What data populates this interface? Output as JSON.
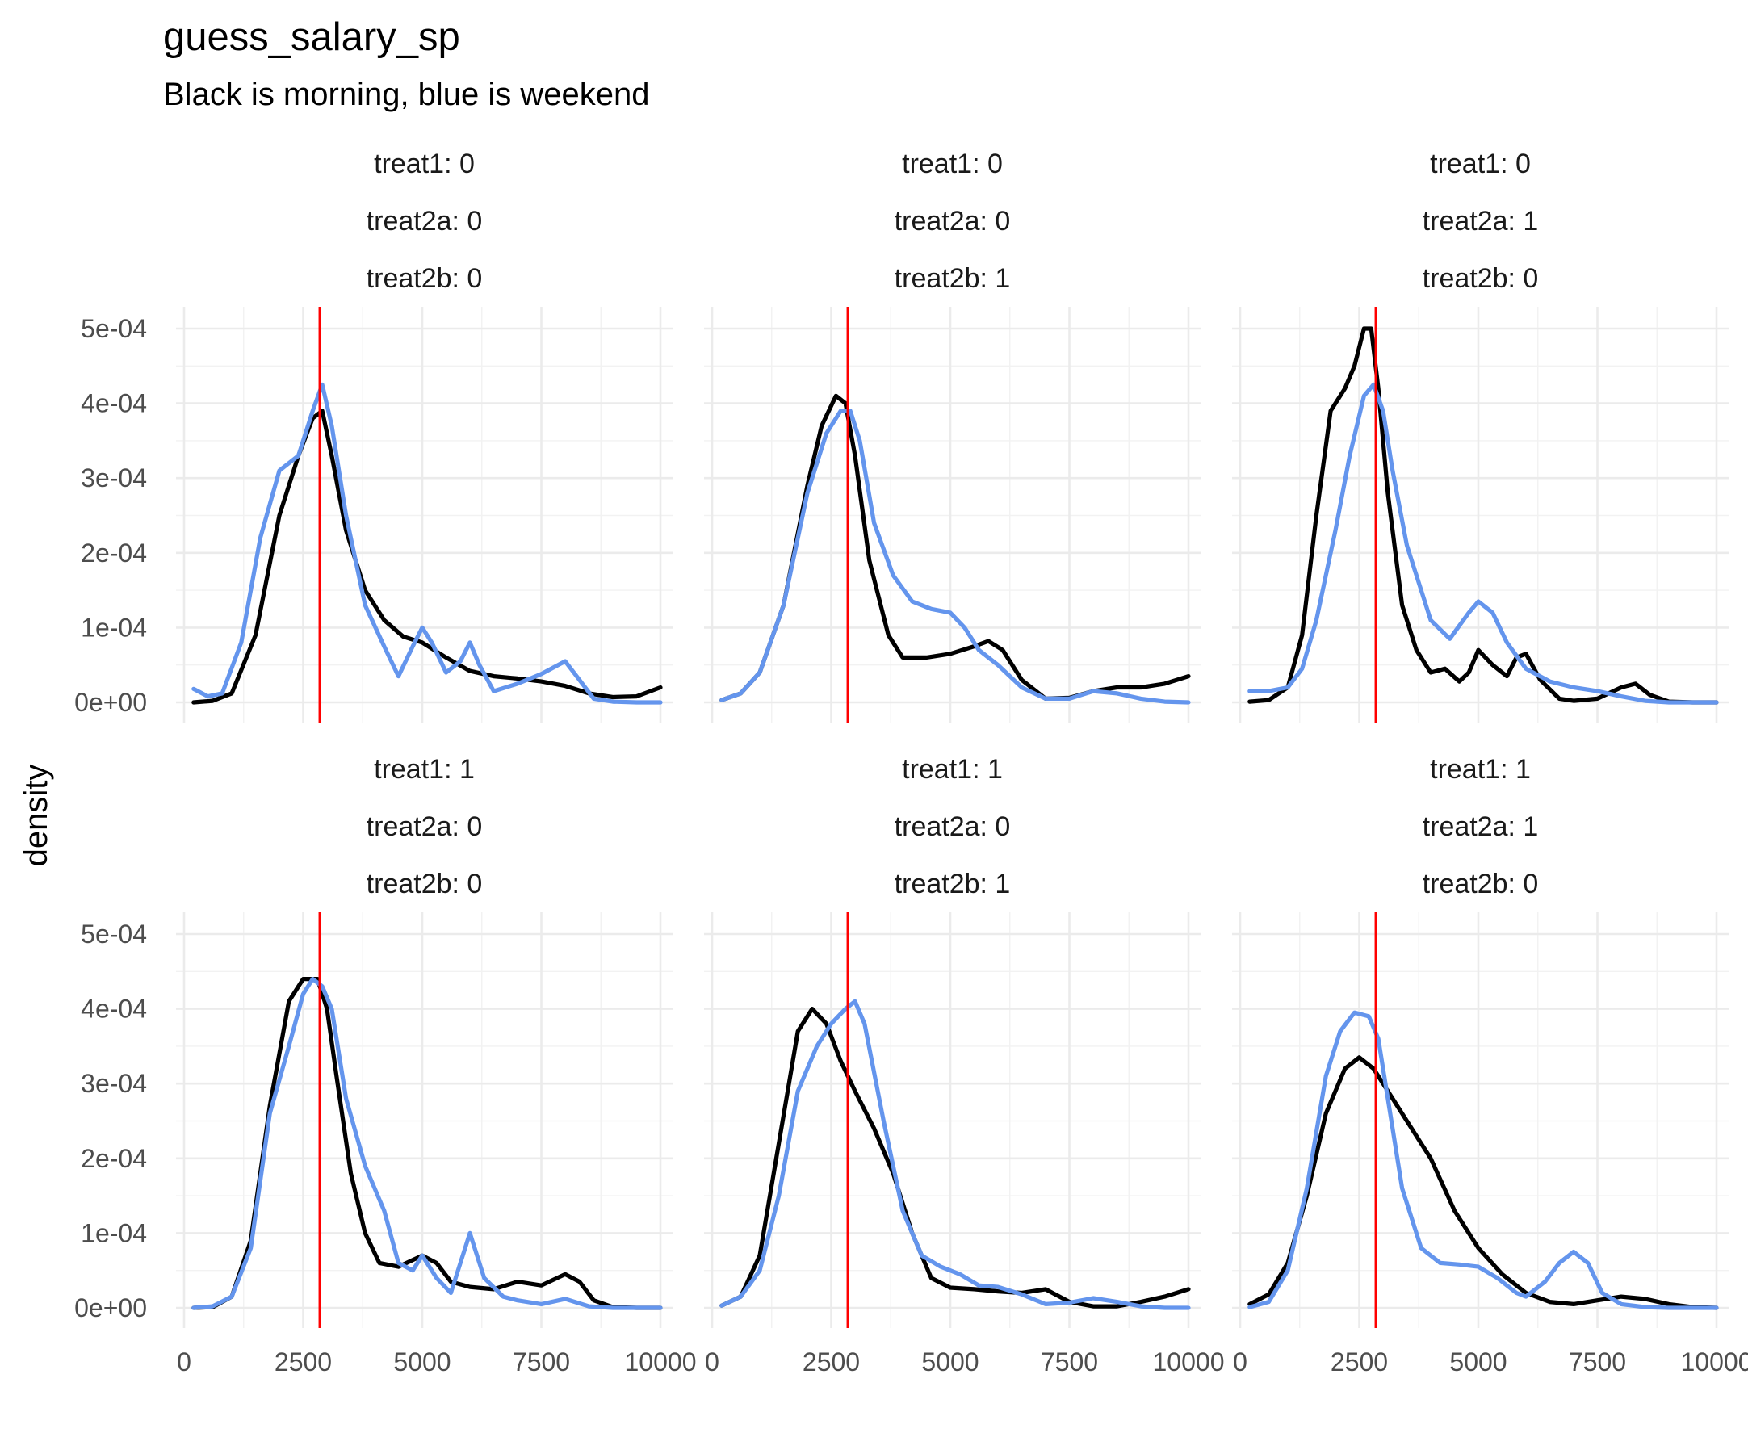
{
  "chart_data": {
    "type": "line",
    "subtype": "faceted density",
    "title": "guess_salary_sp",
    "subtitle": "Black is morning, blue is weekend",
    "xlabel": "",
    "ylabel": "density",
    "xlim": [
      0,
      10000
    ],
    "ylim": [
      0,
      0.0005
    ],
    "x_ticks": [
      0,
      2500,
      5000,
      7500,
      10000
    ],
    "x_tick_labels": [
      "0",
      "2500",
      "5000",
      "7500",
      "10000"
    ],
    "y_ticks": [
      0,
      0.0001,
      0.0002,
      0.0003,
      0.0004,
      0.0005
    ],
    "y_tick_labels": [
      "0e+00",
      "1e-04",
      "2e-04",
      "3e-04",
      "4e-04",
      "5e-04"
    ],
    "grid": true,
    "legend": "none",
    "reference_line_x": 2850,
    "colors": {
      "morning": "#000000",
      "weekend": "#6495ED",
      "reference": "#FF0000"
    },
    "facets": [
      {
        "strip": [
          "treat1: 0",
          "treat2a: 0",
          "treat2b: 0"
        ],
        "series": [
          {
            "color": "#000000",
            "x": [
              200,
              600,
              1000,
              1500,
              2000,
              2400,
              2700,
              2900,
              3100,
              3400,
              3800,
              4200,
              4600,
              5000,
              5500,
              6000,
              6500,
              7000,
              7500,
              8000,
              8500,
              9000,
              9500,
              10000
            ],
            "y": [
              0,
              2e-06,
              1.2e-05,
              9e-05,
              0.00025,
              0.00033,
              0.00038,
              0.00039,
              0.00033,
              0.00023,
              0.00015,
              0.00011,
              8.8e-05,
              8e-05,
              6e-05,
              4.2e-05,
              3.5e-05,
              3.2e-05,
              2.8e-05,
              2.2e-05,
              1.2e-05,
              7e-06,
              8e-06,
              2e-05
            ]
          },
          {
            "color": "#6495ED",
            "x": [
              200,
              500,
              800,
              1200,
              1600,
              2000,
              2400,
              2700,
              2900,
              3100,
              3400,
              3800,
              4200,
              4500,
              4800,
              5000,
              5200,
              5500,
              5800,
              6000,
              6200,
              6500,
              7000,
              7500,
              8000,
              8300,
              8600,
              9000,
              9500,
              10000
            ],
            "y": [
              1.8e-05,
              8e-06,
              1.2e-05,
              8e-05,
              0.00022,
              0.00031,
              0.00033,
              0.00039,
              0.000425,
              0.00037,
              0.00025,
              0.00013,
              7.5e-05,
              3.5e-05,
              7.5e-05,
              0.0001,
              8e-05,
              4e-05,
              5.5e-05,
              8e-05,
              5e-05,
              1.5e-05,
              2.5e-05,
              3.8e-05,
              5.5e-05,
              3e-05,
              5e-06,
              1e-06,
              0,
              0
            ]
          }
        ]
      },
      {
        "strip": [
          "treat1: 0",
          "treat2a: 0",
          "treat2b: 1"
        ],
        "series": [
          {
            "color": "#000000",
            "x": [
              200,
              600,
              1000,
              1500,
              2000,
              2300,
              2600,
              2800,
              3000,
              3300,
              3700,
              4000,
              4500,
              5000,
              5500,
              5800,
              6100,
              6500,
              7000,
              7500,
              8000,
              8500,
              9000,
              9500,
              10000
            ],
            "y": [
              3e-06,
              1.2e-05,
              4e-05,
              0.00013,
              0.00029,
              0.00037,
              0.00041,
              0.0004,
              0.00033,
              0.00019,
              9e-05,
              6e-05,
              6e-05,
              6.5e-05,
              7.5e-05,
              8.2e-05,
              7e-05,
              3e-05,
              5e-06,
              6e-06,
              1.5e-05,
              2e-05,
              2e-05,
              2.5e-05,
              3.5e-05
            ]
          },
          {
            "color": "#6495ED",
            "x": [
              200,
              600,
              1000,
              1500,
              2000,
              2400,
              2700,
              2900,
              3100,
              3400,
              3800,
              4200,
              4600,
              5000,
              5300,
              5600,
              6000,
              6500,
              7000,
              7500,
              8000,
              8500,
              9000,
              9500,
              10000
            ],
            "y": [
              3e-06,
              1.2e-05,
              4e-05,
              0.00013,
              0.00028,
              0.00036,
              0.00039,
              0.00039,
              0.00035,
              0.00024,
              0.00017,
              0.000135,
              0.000125,
              0.00012,
              0.0001,
              7e-05,
              5e-05,
              2e-05,
              5e-06,
              5e-06,
              1.5e-05,
              1.2e-05,
              5e-06,
              1e-06,
              0
            ]
          }
        ]
      },
      {
        "strip": [
          "treat1: 0",
          "treat2a: 1",
          "treat2b: 0"
        ],
        "series": [
          {
            "color": "#000000",
            "x": [
              200,
              600,
              1000,
              1300,
              1600,
              1900,
              2200,
              2400,
              2600,
              2750,
              2900,
              3100,
              3400,
              3700,
              4000,
              4300,
              4600,
              4800,
              5000,
              5300,
              5600,
              5800,
              6000,
              6300,
              6700,
              7000,
              7500,
              8000,
              8300,
              8600,
              9000,
              9500,
              10000
            ],
            "y": [
              1e-06,
              3e-06,
              2e-05,
              9e-05,
              0.00025,
              0.00039,
              0.00042,
              0.00045,
              0.0005,
              0.0005,
              0.00042,
              0.00028,
              0.00013,
              7e-05,
              4e-05,
              4.5e-05,
              2.8e-05,
              4e-05,
              7e-05,
              5e-05,
              3.5e-05,
              6e-05,
              6.5e-05,
              3e-05,
              5e-06,
              2e-06,
              5e-06,
              2e-05,
              2.5e-05,
              1e-05,
              1e-06,
              0,
              0
            ]
          },
          {
            "color": "#6495ED",
            "x": [
              200,
              600,
              1000,
              1300,
              1600,
              2000,
              2300,
              2600,
              2800,
              3000,
              3200,
              3500,
              4000,
              4400,
              4800,
              5000,
              5300,
              5600,
              6000,
              6500,
              7000,
              7500,
              8000,
              8500,
              9000,
              9500,
              10000
            ],
            "y": [
              1.5e-05,
              1.5e-05,
              2e-05,
              4.5e-05,
              0.00011,
              0.00023,
              0.00033,
              0.00041,
              0.000425,
              0.00039,
              0.00031,
              0.00021,
              0.00011,
              8.5e-05,
              0.00012,
              0.000135,
              0.00012,
              8e-05,
              4.5e-05,
              2.8e-05,
              2e-05,
              1.5e-05,
              8e-06,
              2e-06,
              0,
              0,
              0
            ]
          }
        ]
      },
      {
        "strip": [
          "treat1: 1",
          "treat2a: 0",
          "treat2b: 0"
        ],
        "series": [
          {
            "color": "#000000",
            "x": [
              200,
              600,
              1000,
              1400,
              1800,
              2200,
              2500,
              2800,
              3000,
              3200,
              3500,
              3800,
              4100,
              4500,
              5000,
              5300,
              5600,
              6000,
              6500,
              7000,
              7500,
              8000,
              8300,
              8600,
              9000,
              9500,
              10000
            ],
            "y": [
              0,
              1e-06,
              1.5e-05,
              9e-05,
              0.00027,
              0.00041,
              0.00044,
              0.00044,
              0.0004,
              0.00031,
              0.00018,
              0.0001,
              6e-05,
              5.5e-05,
              7e-05,
              6e-05,
              3.5e-05,
              2.8e-05,
              2.5e-05,
              3.5e-05,
              3e-05,
              4.5e-05,
              3.5e-05,
              1e-05,
              1e-06,
              0,
              0
            ]
          },
          {
            "color": "#6495ED",
            "x": [
              200,
              600,
              1000,
              1400,
              1800,
              2200,
              2500,
              2700,
              2900,
              3100,
              3400,
              3800,
              4200,
              4500,
              4800,
              5000,
              5300,
              5600,
              6000,
              6300,
              6700,
              7000,
              7500,
              8000,
              8500,
              9000,
              9500,
              10000
            ],
            "y": [
              0,
              2e-06,
              1.5e-05,
              8e-05,
              0.00026,
              0.00035,
              0.00042,
              0.00044,
              0.00043,
              0.0004,
              0.00028,
              0.00019,
              0.00013,
              6e-05,
              5e-05,
              7e-05,
              4e-05,
              2e-05,
              0.0001,
              4e-05,
              1.5e-05,
              1e-05,
              5e-06,
              1.2e-05,
              2e-06,
              0,
              0,
              0
            ]
          }
        ]
      },
      {
        "strip": [
          "treat1: 1",
          "treat2a: 0",
          "treat2b: 1"
        ],
        "series": [
          {
            "color": "#000000",
            "x": [
              200,
              600,
              1000,
              1400,
              1800,
              2100,
              2400,
              2700,
              3000,
              3400,
              3800,
              4200,
              4600,
              5000,
              5500,
              6000,
              6500,
              7000,
              7500,
              8000,
              8500,
              9000,
              9500,
              10000
            ],
            "y": [
              3e-06,
              1.5e-05,
              7e-05,
              0.00022,
              0.00037,
              0.0004,
              0.00038,
              0.00033,
              0.00029,
              0.00024,
              0.00018,
              0.0001,
              4e-05,
              2.7e-05,
              2.5e-05,
              2.2e-05,
              2e-05,
              2.5e-05,
              8e-06,
              2e-06,
              2e-06,
              8e-06,
              1.5e-05,
              2.5e-05
            ]
          },
          {
            "color": "#6495ED",
            "x": [
              200,
              600,
              1000,
              1400,
              1800,
              2200,
              2500,
              2800,
              3000,
              3200,
              3600,
              4000,
              4400,
              4800,
              5200,
              5600,
              6000,
              6500,
              7000,
              7500,
              8000,
              8500,
              9000,
              9500,
              10000
            ],
            "y": [
              3e-06,
              1.5e-05,
              5e-05,
              0.00015,
              0.00029,
              0.00035,
              0.00038,
              0.0004,
              0.00041,
              0.00038,
              0.00025,
              0.00013,
              7e-05,
              5.5e-05,
              4.5e-05,
              3e-05,
              2.8e-05,
              1.8e-05,
              5e-06,
              7e-06,
              1.3e-05,
              8e-06,
              2e-06,
              0,
              0
            ]
          }
        ]
      },
      {
        "strip": [
          "treat1: 1",
          "treat2a: 1",
          "treat2b: 0"
        ],
        "series": [
          {
            "color": "#000000",
            "x": [
              200,
              600,
              1000,
              1400,
              1800,
              2200,
              2500,
              2800,
              3200,
              3600,
              4000,
              4500,
              5000,
              5500,
              6000,
              6500,
              7000,
              7500,
              8000,
              8500,
              9000,
              9500,
              10000
            ],
            "y": [
              5e-06,
              1.8e-05,
              6e-05,
              0.00015,
              0.00026,
              0.00032,
              0.000335,
              0.00032,
              0.00028,
              0.00024,
              0.0002,
              0.00013,
              8e-05,
              4.5e-05,
              2e-05,
              8e-06,
              5e-06,
              1e-05,
              1.5e-05,
              1.2e-05,
              5e-06,
              1e-06,
              0
            ]
          },
          {
            "color": "#6495ED",
            "x": [
              200,
              600,
              1000,
              1400,
              1800,
              2100,
              2400,
              2700,
              2900,
              3100,
              3400,
              3800,
              4200,
              4600,
              5000,
              5400,
              5800,
              6000,
              6400,
              6700,
              7000,
              7300,
              7600,
              8000,
              8500,
              9000,
              9500,
              10000
            ],
            "y": [
              1e-06,
              8e-06,
              5e-05,
              0.00016,
              0.00031,
              0.00037,
              0.000395,
              0.00039,
              0.00036,
              0.00028,
              0.00016,
              8e-05,
              6e-05,
              5.8e-05,
              5.5e-05,
              4e-05,
              2e-05,
              1.5e-05,
              3.5e-05,
              6e-05,
              7.5e-05,
              6e-05,
              2e-05,
              5e-06,
              1e-06,
              0,
              0,
              0
            ]
          }
        ]
      }
    ]
  }
}
